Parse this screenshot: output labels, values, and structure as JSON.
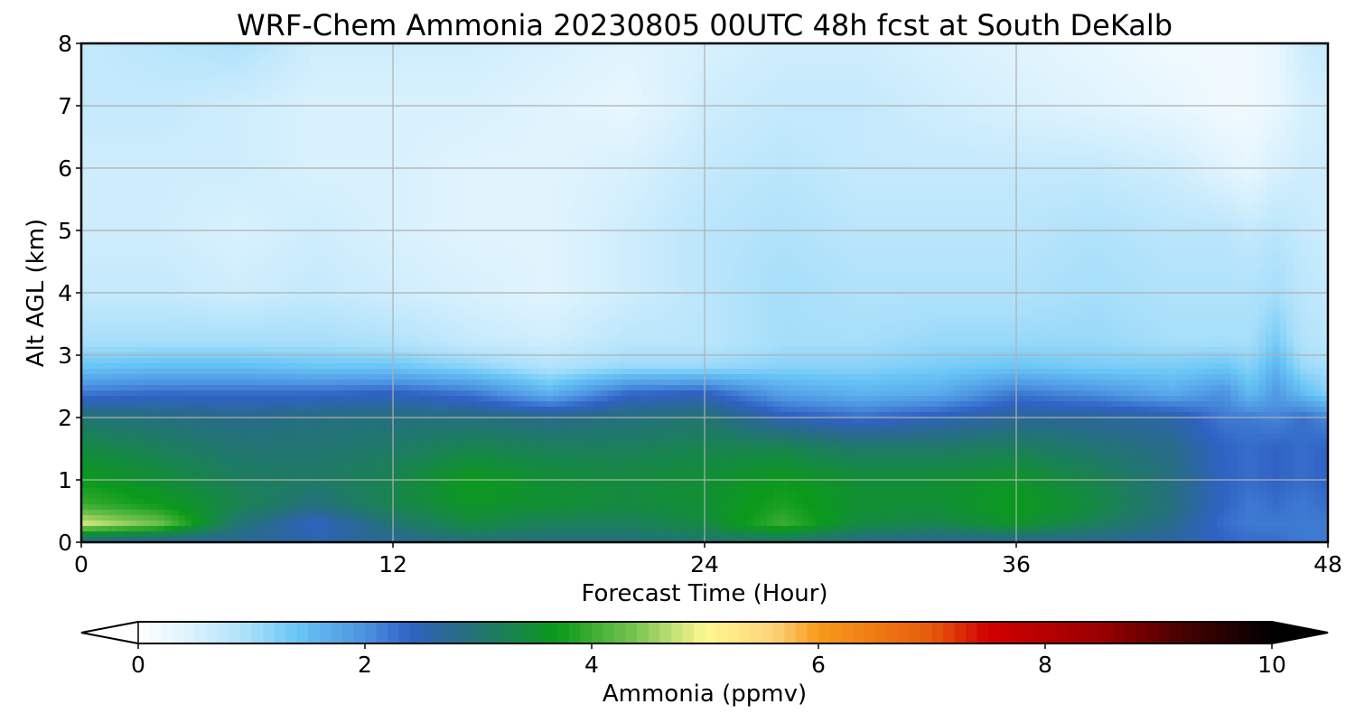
{
  "chart_data": {
    "type": "heatmap",
    "title": "WRF-Chem Ammonia  20230805 00UTC 48h fcst at South DeKalb",
    "xlabel": "Forecast Time (Hour)",
    "ylabel": "Alt AGL (km)",
    "xlim": [
      0,
      48
    ],
    "ylim": [
      0,
      8
    ],
    "xticks": [
      "0",
      "12",
      "24",
      "36",
      "48"
    ],
    "yticks": [
      "0",
      "1",
      "2",
      "3",
      "4",
      "5",
      "6",
      "7",
      "8"
    ],
    "grid": true,
    "x": [
      0,
      3,
      6,
      9,
      12,
      15,
      18,
      21,
      24,
      27,
      30,
      33,
      36,
      39,
      42,
      44,
      45,
      46,
      47,
      48
    ],
    "y": [
      0,
      0.3,
      0.6,
      1,
      1.5,
      2,
      2.4,
      2.8,
      3.2,
      4,
      5,
      6,
      7,
      8
    ],
    "z": [
      [
        2.6,
        2.6,
        2.7,
        2.6,
        2.7,
        2.9,
        2.9,
        2.9,
        3.0,
        3.0,
        2.8,
        2.7,
        2.7,
        2.7,
        2.6,
        2.4,
        2.3,
        2.3,
        2.2,
        2.2
      ],
      [
        4.8,
        4.3,
        3.0,
        2.4,
        3.0,
        3.4,
        3.2,
        3.2,
        3.4,
        4.0,
        3.4,
        3.3,
        3.6,
        3.2,
        2.8,
        2.3,
        2.2,
        2.2,
        2.2,
        2.2
      ],
      [
        4.0,
        3.7,
        3.3,
        2.9,
        3.3,
        3.6,
        3.5,
        3.4,
        3.5,
        3.8,
        3.5,
        3.5,
        3.7,
        3.4,
        2.9,
        2.4,
        2.2,
        2.3,
        2.2,
        2.3
      ],
      [
        3.7,
        3.5,
        3.2,
        3.1,
        3.3,
        3.7,
        3.5,
        3.4,
        3.5,
        3.7,
        3.5,
        3.5,
        3.6,
        3.3,
        2.9,
        2.4,
        2.3,
        2.4,
        2.3,
        2.4
      ],
      [
        3.4,
        3.2,
        3.0,
        3.0,
        3.1,
        3.3,
        3.2,
        3.2,
        3.3,
        3.3,
        3.1,
        3.1,
        3.2,
        3.0,
        2.8,
        2.4,
        2.3,
        2.4,
        2.3,
        2.4
      ],
      [
        3.0,
        2.9,
        2.8,
        2.9,
        2.9,
        2.9,
        2.8,
        2.9,
        3.0,
        2.5,
        2.3,
        2.5,
        2.7,
        2.7,
        2.6,
        2.2,
        2.2,
        2.1,
        2.3,
        2.1
      ],
      [
        2.2,
        2.3,
        2.3,
        2.3,
        2.4,
        2.2,
        1.6,
        2.3,
        2.4,
        1.8,
        1.6,
        1.7,
        2.2,
        2.0,
        1.7,
        2.0,
        1.5,
        1.9,
        1.5,
        1.2
      ],
      [
        1.4,
        1.5,
        1.5,
        1.4,
        1.4,
        1.2,
        0.9,
        1.1,
        1.1,
        1.2,
        1.2,
        1.3,
        1.4,
        1.3,
        1.3,
        1.4,
        1.2,
        1.6,
        1.1,
        1.0
      ],
      [
        1.0,
        1.0,
        1.0,
        1.0,
        0.9,
        0.7,
        0.6,
        0.8,
        0.8,
        1.0,
        1.0,
        1.1,
        1.1,
        1.1,
        1.0,
        1.0,
        1.0,
        1.3,
        0.9,
        0.8
      ],
      [
        0.7,
        0.7,
        0.6,
        0.7,
        0.6,
        0.5,
        0.4,
        0.6,
        0.8,
        1.0,
        0.9,
        0.9,
        0.9,
        1.0,
        0.9,
        0.9,
        0.9,
        1.0,
        0.8,
        0.7
      ],
      [
        0.6,
        0.6,
        0.5,
        0.6,
        0.5,
        0.4,
        0.4,
        0.6,
        0.8,
        0.9,
        0.8,
        0.8,
        0.8,
        0.9,
        0.8,
        0.8,
        0.7,
        0.8,
        0.7,
        0.6
      ],
      [
        0.6,
        0.6,
        0.6,
        0.5,
        0.5,
        0.4,
        0.4,
        0.5,
        0.7,
        0.8,
        0.7,
        0.7,
        0.7,
        0.7,
        0.6,
        0.4,
        0.3,
        0.5,
        0.6,
        0.6
      ],
      [
        0.7,
        0.7,
        0.6,
        0.5,
        0.5,
        0.5,
        0.4,
        0.3,
        0.6,
        0.7,
        0.7,
        0.6,
        0.5,
        0.4,
        0.3,
        0.2,
        0.2,
        0.3,
        0.5,
        0.6
      ],
      [
        0.7,
        0.8,
        0.9,
        0.6,
        0.6,
        0.6,
        0.5,
        0.4,
        0.5,
        0.6,
        0.6,
        0.5,
        0.4,
        0.3,
        0.2,
        0.2,
        0.2,
        0.3,
        0.6,
        0.7
      ]
    ],
    "colorbar": {
      "label": "Ammonia  (ppmv)",
      "min": 0,
      "max": 10,
      "ticks": [
        "0",
        "2",
        "4",
        "6",
        "8",
        "10"
      ],
      "extend": "both",
      "stops": [
        {
          "v": 0.0,
          "c": "#ffffff"
        },
        {
          "v": 0.5,
          "c": "#d8f1fd"
        },
        {
          "v": 1.0,
          "c": "#a6defa"
        },
        {
          "v": 1.4,
          "c": "#68c5f6"
        },
        {
          "v": 2.0,
          "c": "#4c92e0"
        },
        {
          "v": 2.4,
          "c": "#2f62c4"
        },
        {
          "v": 2.8,
          "c": "#286b8a"
        },
        {
          "v": 3.2,
          "c": "#1b7f5a"
        },
        {
          "v": 3.7,
          "c": "#0a9a1a"
        },
        {
          "v": 4.4,
          "c": "#7cc552"
        },
        {
          "v": 5.0,
          "c": "#fff891"
        },
        {
          "v": 5.6,
          "c": "#fcd27a"
        },
        {
          "v": 6.0,
          "c": "#f89a1a"
        },
        {
          "v": 7.0,
          "c": "#e65a0d"
        },
        {
          "v": 7.5,
          "c": "#d10000"
        },
        {
          "v": 8.5,
          "c": "#9a0000"
        },
        {
          "v": 9.2,
          "c": "#4a0000"
        },
        {
          "v": 10.0,
          "c": "#000000"
        }
      ]
    }
  }
}
